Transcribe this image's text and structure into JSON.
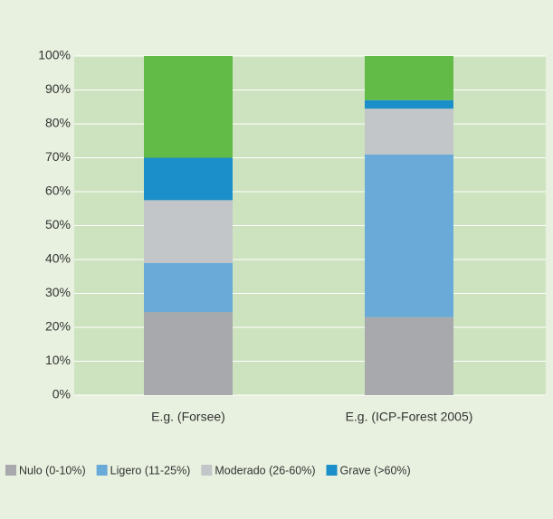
{
  "chart_data": {
    "type": "stacked_bar",
    "categories": [
      "E.g. (Forsee)",
      "E.g. (ICP-Forest 2005)"
    ],
    "series": [
      {
        "name": "Nulo (0-10%)",
        "color": "#a7a9ac",
        "values": [
          24.5,
          23
        ]
      },
      {
        "name": "Ligero (11-25%)",
        "color": "#6aaad8",
        "values": [
          14.5,
          48
        ]
      },
      {
        "name": "Moderado (26-60%)",
        "color": "#c3c6c9",
        "values": [
          18.5,
          13.5
        ]
      },
      {
        "name": "Grave (>60%)",
        "color": "#1b8fc9",
        "values": [
          12.5,
          2.5
        ]
      },
      {
        "color": "#62bb46",
        "values": [
          30,
          13
        ]
      }
    ],
    "ylim": [
      0,
      100
    ],
    "yticks": [
      {
        "value": 0,
        "label": "0%"
      },
      {
        "value": 10,
        "label": "10%"
      },
      {
        "value": 20,
        "label": "20%"
      },
      {
        "value": 30,
        "label": "30%"
      },
      {
        "value": 40,
        "label": "40%"
      },
      {
        "value": 50,
        "label": "50%"
      },
      {
        "value": 60,
        "label": "60%"
      },
      {
        "value": 70,
        "label": "70%"
      },
      {
        "value": 80,
        "label": "80%"
      },
      {
        "value": 90,
        "label": "90%"
      },
      {
        "value": 100,
        "label": "100%"
      }
    ],
    "grid": true,
    "legend": "bottom"
  }
}
